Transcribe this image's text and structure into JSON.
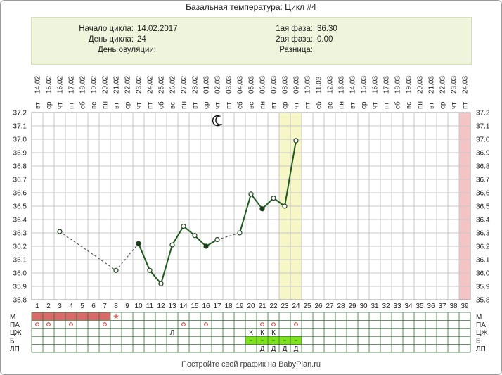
{
  "title": "Базальная температура: Цикл #4",
  "info": {
    "start_label": "Начало цикла:",
    "start_value": "14.02.2017",
    "day_label": "День цикла:",
    "day_value": "24",
    "ovulation_label": "День овуляции:",
    "ovulation_value": "",
    "phase1_label": "1ая фаза:",
    "phase1_value": "36.30",
    "phase2_label": "2ая фаза:",
    "phase2_value": "0.00",
    "diff_label": "Разница:",
    "diff_value": ""
  },
  "footer": "Постройте свой график на BabyPlan.ru",
  "chart_data": {
    "type": "line",
    "ylim": [
      35.8,
      37.2
    ],
    "y_ticks": [
      "35.8",
      "35.9",
      "36.0",
      "36.1",
      "36.2",
      "36.3",
      "36.4",
      "36.5",
      "36.6",
      "36.7",
      "36.8",
      "36.9",
      "37.0",
      "37.1",
      "37.2"
    ],
    "x_days": [
      "1",
      "2",
      "3",
      "4",
      "5",
      "6",
      "7",
      "8",
      "9",
      "10",
      "11",
      "12",
      "13",
      "14",
      "15",
      "16",
      "17",
      "18",
      "19",
      "20",
      "21",
      "22",
      "23",
      "24",
      "25",
      "26",
      "27",
      "28",
      "29",
      "30",
      "31",
      "32",
      "33",
      "34",
      "35",
      "36",
      "37",
      "38",
      "39"
    ],
    "dates": [
      "14.02",
      "15.02",
      "16.02",
      "17.02",
      "18.02",
      "19.02",
      "20.02",
      "21.02",
      "22.02",
      "23.02",
      "24.02",
      "25.02",
      "26.02",
      "27.02",
      "28.02",
      "01.03",
      "02.03",
      "03.03",
      "04.03",
      "05.03",
      "06.03",
      "07.03",
      "08.03",
      "09.03",
      "10.03",
      "11.03",
      "12.03",
      "13.03",
      "14.03",
      "15.03",
      "16.03",
      "17.03",
      "18.03",
      "19.03",
      "20.03",
      "21.03",
      "22.03",
      "23.03",
      "24.03"
    ],
    "weekdays": [
      "вт",
      "ср",
      "чт",
      "пт",
      "сб",
      "вс",
      "пн",
      "вт",
      "ср",
      "чт",
      "пт",
      "сб",
      "вс",
      "пн",
      "вт",
      "ср",
      "чт",
      "пт",
      "сб",
      "вс",
      "пн",
      "вт",
      "ср",
      "чт",
      "пт",
      "сб",
      "вс",
      "пн",
      "вт",
      "ср",
      "чт",
      "пт",
      "сб",
      "вс",
      "пн",
      "вт",
      "ср",
      "чт",
      "пт"
    ],
    "series": [
      {
        "points": [
          {
            "day": 3,
            "temp": 36.31,
            "marker": "open"
          },
          {
            "day": 8,
            "temp": 36.02,
            "marker": "open"
          },
          {
            "day": 10,
            "temp": 36.22,
            "marker": "filled"
          },
          {
            "day": 11,
            "temp": 36.02,
            "marker": "open"
          },
          {
            "day": 12,
            "temp": 35.92,
            "marker": "open"
          },
          {
            "day": 13,
            "temp": 36.21,
            "marker": "open"
          },
          {
            "day": 14,
            "temp": 36.35,
            "marker": "open"
          },
          {
            "day": 15,
            "temp": 36.28,
            "marker": "open"
          },
          {
            "day": 16,
            "temp": 36.2,
            "marker": "filled"
          },
          {
            "day": 17,
            "temp": 36.25,
            "marker": "open"
          },
          {
            "day": 19,
            "temp": 36.3,
            "marker": "open"
          },
          {
            "day": 20,
            "temp": 36.59,
            "marker": "open"
          },
          {
            "day": 21,
            "temp": 36.48,
            "marker": "filled"
          },
          {
            "day": 22,
            "temp": 36.56,
            "marker": "open"
          },
          {
            "day": 23,
            "temp": 36.5,
            "marker": "open"
          },
          {
            "day": 24,
            "temp": 36.99,
            "marker": "open"
          }
        ]
      }
    ],
    "highlight_days": [
      23,
      24
    ],
    "highlight_color": "#f6f6c6",
    "expected_period_day": 39,
    "expected_period_color": "#f4c4c4",
    "line_color": "#1e5b1e",
    "moon_day": 17,
    "rows": [
      {
        "label": "М",
        "cells": {
          "1": "bar",
          "2": "bar",
          "3": "bar",
          "4": "bar",
          "5": "bar",
          "6": "bar",
          "7": "bar",
          "8": "star"
        }
      },
      {
        "label": "ПА",
        "cells": {
          "1": "o",
          "2": "o",
          "4": "o",
          "7": "o",
          "14": "o",
          "16": "o",
          "21": "o",
          "22": "o",
          "24": "o"
        }
      },
      {
        "label": "ЦЖ",
        "cells": {
          "13": "Л",
          "20": "К",
          "21": "К",
          "22": "К"
        }
      },
      {
        "label": "Б",
        "cells": {
          "20": "green",
          "21": "green",
          "22": "green",
          "23": "green",
          "24": "green"
        }
      },
      {
        "label": "ЛП",
        "cells": {
          "21": "Д",
          "22": "Д",
          "23": "Д",
          "24": "Д"
        }
      }
    ],
    "row_colors": {
      "bar": "#d86a6a",
      "star": "#d86a6a",
      "o": "#cc3333",
      "green": "#7ee21a"
    }
  }
}
